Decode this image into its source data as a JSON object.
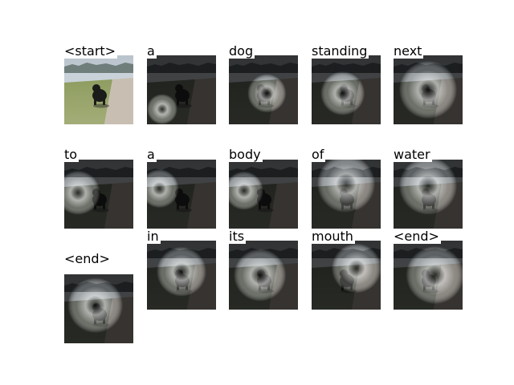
{
  "figure": {
    "cells": [
      {
        "word": "<start>",
        "kind": "original",
        "attn": [
          0.5,
          0.5,
          0.0,
          0.0
        ]
      },
      {
        "word": "a",
        "kind": "attention",
        "attn": [
          0.22,
          0.78,
          0.22,
          0.16
        ]
      },
      {
        "word": "dog",
        "kind": "attention",
        "attn": [
          0.55,
          0.55,
          0.28,
          0.22
        ]
      },
      {
        "word": "standing",
        "kind": "attention",
        "attn": [
          0.45,
          0.55,
          0.32,
          0.3
        ]
      },
      {
        "word": "next",
        "kind": "attention",
        "attn": [
          0.5,
          0.5,
          0.42,
          0.4
        ]
      },
      {
        "word": "to",
        "kind": "attention",
        "attn": [
          0.2,
          0.48,
          0.32,
          0.22
        ]
      },
      {
        "word": "a",
        "kind": "attention",
        "attn": [
          0.18,
          0.42,
          0.28,
          0.14
        ]
      },
      {
        "word": "body",
        "kind": "attention",
        "attn": [
          0.22,
          0.45,
          0.28,
          0.16
        ]
      },
      {
        "word": "of",
        "kind": "attention",
        "attn": [
          0.5,
          0.35,
          0.42,
          0.28
        ]
      },
      {
        "word": "water",
        "kind": "attention",
        "attn": [
          0.5,
          0.38,
          0.42,
          0.28
        ]
      },
      {
        "word": "<end>",
        "kind": "attention",
        "attn": [
          0.45,
          0.45,
          0.4,
          0.3
        ]
      },
      {
        "word": "in",
        "kind": "attention",
        "attn": [
          0.5,
          0.45,
          0.36,
          0.36
        ]
      },
      {
        "word": "its",
        "kind": "attention",
        "attn": [
          0.45,
          0.5,
          0.38,
          0.38
        ]
      },
      {
        "word": "mouth",
        "kind": "attention",
        "attn": [
          0.65,
          0.4,
          0.36,
          0.36
        ]
      },
      {
        "word": "<end>",
        "kind": "attention",
        "attn": [
          0.6,
          0.5,
          0.42,
          0.4
        ]
      }
    ]
  }
}
